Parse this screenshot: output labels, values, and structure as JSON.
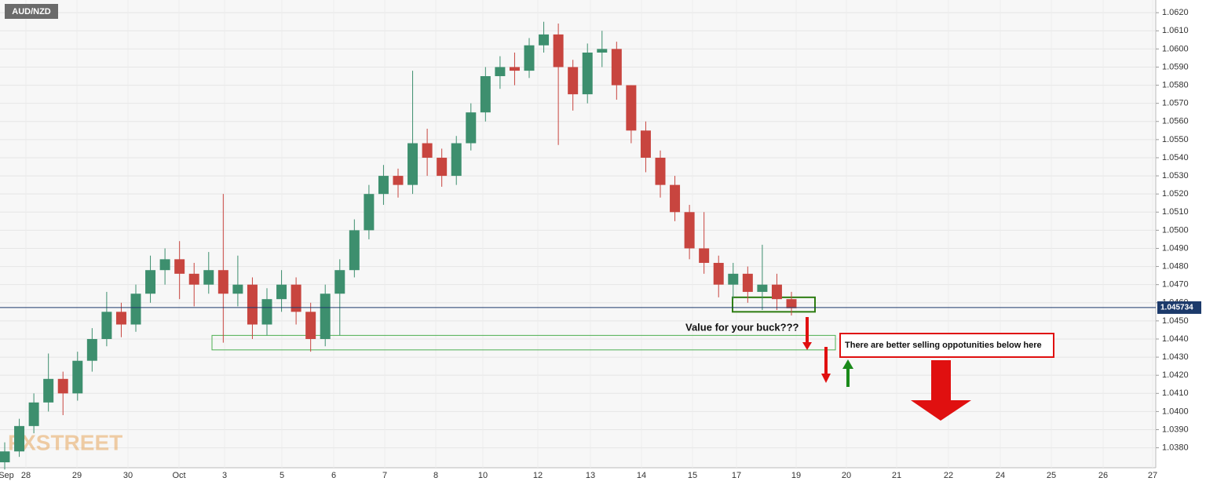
{
  "chart_data": {
    "type": "candlestick",
    "title": "AUD/NZD",
    "watermark": "FXSTREET",
    "categories": [
      "Sep",
      "28",
      "29",
      "30",
      "Oct",
      "3",
      "5",
      "6",
      "7",
      "8",
      "10",
      "12",
      "13",
      "14",
      "15",
      "17",
      "19",
      "20",
      "21",
      "22",
      "24",
      "25",
      "26",
      "27"
    ],
    "candles": {
      "open": [
        1.0372,
        1.0378,
        1.0392,
        1.0405,
        1.0418,
        1.041,
        1.0428,
        1.044,
        1.0455,
        1.0448,
        1.0465,
        1.0478,
        1.0484,
        1.0476,
        1.047,
        1.0478,
        1.0465,
        1.047,
        1.0448,
        1.0462,
        1.047,
        1.0455,
        1.044,
        1.0465,
        1.0478,
        1.05,
        1.052,
        1.053,
        1.0525,
        1.0548,
        1.054,
        1.053,
        1.0548,
        1.0565,
        1.0585,
        1.059,
        1.0588,
        1.0602,
        1.0608,
        1.059,
        1.0575,
        1.0598,
        1.06,
        1.058,
        1.0555,
        1.054,
        1.0525,
        1.051,
        1.049,
        1.0482,
        1.047,
        1.0476,
        1.0466,
        1.047,
        1.0462
      ],
      "high": [
        1.0383,
        1.0396,
        1.041,
        1.0432,
        1.0422,
        1.0433,
        1.0446,
        1.0466,
        1.046,
        1.047,
        1.0486,
        1.049,
        1.0494,
        1.0482,
        1.0488,
        1.052,
        1.0486,
        1.0474,
        1.0468,
        1.0478,
        1.0474,
        1.046,
        1.047,
        1.0484,
        1.0506,
        1.0525,
        1.0536,
        1.0534,
        1.0588,
        1.0556,
        1.0545,
        1.0552,
        1.057,
        1.059,
        1.0596,
        1.0598,
        1.0606,
        1.0615,
        1.0614,
        1.0594,
        1.0603,
        1.061,
        1.0604,
        1.058,
        1.056,
        1.0544,
        1.053,
        1.0514,
        1.051,
        1.0486,
        1.0482,
        1.048,
        1.0492,
        1.0476,
        1.0466
      ],
      "low": [
        1.0368,
        1.0375,
        1.0388,
        1.04,
        1.0398,
        1.0406,
        1.0422,
        1.0436,
        1.0441,
        1.0444,
        1.046,
        1.047,
        1.0462,
        1.0458,
        1.0465,
        1.0438,
        1.0458,
        1.044,
        1.0442,
        1.0455,
        1.0448,
        1.0433,
        1.0436,
        1.0442,
        1.0474,
        1.0495,
        1.0514,
        1.0518,
        1.052,
        1.053,
        1.0524,
        1.0525,
        1.0544,
        1.056,
        1.0578,
        1.058,
        1.0584,
        1.0598,
        1.0547,
        1.0566,
        1.057,
        1.059,
        1.0572,
        1.0548,
        1.0532,
        1.0518,
        1.0505,
        1.0484,
        1.0476,
        1.0463,
        1.0462,
        1.046,
        1.0456,
        1.0456,
        1.0453
      ],
      "close": [
        1.0378,
        1.0392,
        1.0405,
        1.0418,
        1.041,
        1.0428,
        1.044,
        1.0455,
        1.0448,
        1.0465,
        1.0478,
        1.0484,
        1.0476,
        1.047,
        1.0478,
        1.0465,
        1.047,
        1.0448,
        1.0462,
        1.047,
        1.0455,
        1.044,
        1.0465,
        1.0478,
        1.05,
        1.052,
        1.053,
        1.0525,
        1.0548,
        1.054,
        1.053,
        1.0548,
        1.0565,
        1.0585,
        1.059,
        1.0588,
        1.0602,
        1.0608,
        1.059,
        1.0575,
        1.0598,
        1.06,
        1.058,
        1.0555,
        1.054,
        1.0525,
        1.051,
        1.049,
        1.0482,
        1.047,
        1.0476,
        1.0466,
        1.047,
        1.0462,
        1.0457
      ]
    },
    "up_color": "#3d8f6e",
    "down_color": "#c8453f",
    "last_price": 1.045734,
    "ylim": [
      1.0369,
      1.0627
    ],
    "yticks": [
      {
        "value": 1.038,
        "label": "1.0380"
      },
      {
        "value": 1.039,
        "label": "1.0390"
      },
      {
        "value": 1.04,
        "label": "1.0400"
      },
      {
        "value": 1.041,
        "label": "1.0410"
      },
      {
        "value": 1.042,
        "label": "1.0420"
      },
      {
        "value": 1.043,
        "label": "1.0430"
      },
      {
        "value": 1.044,
        "label": "1.0440"
      },
      {
        "value": 1.045,
        "label": "1.0450"
      },
      {
        "value": 1.046,
        "label": "1.0460"
      },
      {
        "value": 1.047,
        "label": "1.0470"
      },
      {
        "value": 1.048,
        "label": "1.0480"
      },
      {
        "value": 1.049,
        "label": "1.0490"
      },
      {
        "value": 1.05,
        "label": "1.0500"
      },
      {
        "value": 1.051,
        "label": "1.0510"
      },
      {
        "value": 1.052,
        "label": "1.0520"
      },
      {
        "value": 1.053,
        "label": "1.0530"
      },
      {
        "value": 1.054,
        "label": "1.0540"
      },
      {
        "value": 1.055,
        "label": "1.0550"
      },
      {
        "value": 1.056,
        "label": "1.0560"
      },
      {
        "value": 1.057,
        "label": "1.0570"
      },
      {
        "value": 1.058,
        "label": "1.0580"
      },
      {
        "value": 1.059,
        "label": "1.0590"
      },
      {
        "value": 1.06,
        "label": "1.0600"
      },
      {
        "value": 1.061,
        "label": "1.0610"
      },
      {
        "value": 1.062,
        "label": "1.0620"
      }
    ],
    "grid": true,
    "zones": [
      {
        "low": 1.0455,
        "high": 1.0463,
        "color": "#2e7d12"
      },
      {
        "low": 1.0434,
        "high": 1.0442,
        "color": "#4caf50"
      }
    ],
    "annotations": [
      "Value for your buck???",
      "There are better selling oppotunities below here"
    ]
  }
}
